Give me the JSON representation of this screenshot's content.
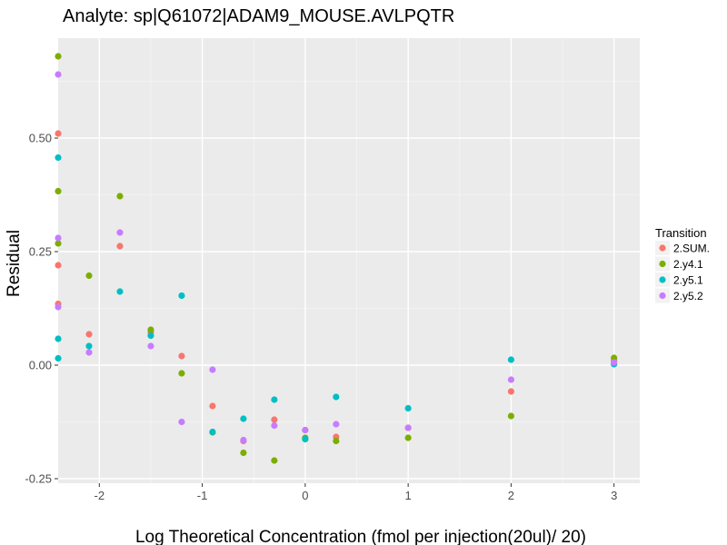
{
  "chart_data": {
    "type": "scatter",
    "title": "Analyte: sp|Q61072|ADAM9_MOUSE.AVLPQTR",
    "xlabel": "Log Theoretical Concentration (fmol per injection(20ul)/ 20)",
    "ylabel": "Residual",
    "xlim": [
      -2.4,
      3.25
    ],
    "ylim": [
      -0.26,
      0.72
    ],
    "x_ticks": [
      -2,
      -1,
      0,
      1,
      2,
      3
    ],
    "x_tick_labels": [
      "-2",
      "-1",
      "0",
      "1",
      "2",
      "3"
    ],
    "y_ticks": [
      -0.25,
      0.0,
      0.25,
      0.5
    ],
    "y_tick_labels": [
      "-0.25",
      "0.00",
      "0.25",
      "0.50"
    ],
    "grid": true,
    "legend": {
      "title": "Transition",
      "position": "right"
    },
    "series": [
      {
        "name": "2.SUM.",
        "color": "#F8766D",
        "points": [
          [
            -2.4,
            0.51
          ],
          [
            -2.4,
            0.22
          ],
          [
            -2.4,
            0.135
          ],
          [
            -2.1,
            0.068
          ],
          [
            -1.8,
            0.262
          ],
          [
            -1.5,
            0.072
          ],
          [
            -1.2,
            0.02
          ],
          [
            -0.9,
            -0.09
          ],
          [
            -0.6,
            -0.167
          ],
          [
            -0.3,
            -0.12
          ],
          [
            0.0,
            -0.143
          ],
          [
            0.3,
            -0.158
          ],
          [
            1.0,
            -0.138
          ],
          [
            2.0,
            -0.058
          ],
          [
            3.0,
            0.01
          ]
        ]
      },
      {
        "name": "2.y4.1",
        "color": "#7CAE00",
        "points": [
          [
            -2.4,
            0.68
          ],
          [
            -2.4,
            0.383
          ],
          [
            -2.4,
            0.268
          ],
          [
            -2.1,
            0.197
          ],
          [
            -1.8,
            0.372
          ],
          [
            -1.5,
            0.078
          ],
          [
            -1.2,
            -0.018
          ],
          [
            -0.9,
            -0.148
          ],
          [
            -0.6,
            -0.193
          ],
          [
            -0.3,
            -0.21
          ],
          [
            0.0,
            -0.16
          ],
          [
            0.3,
            -0.167
          ],
          [
            1.0,
            -0.16
          ],
          [
            2.0,
            -0.112
          ],
          [
            3.0,
            0.016
          ]
        ]
      },
      {
        "name": "2.y5.1",
        "color": "#00BFC4",
        "points": [
          [
            -2.4,
            0.457
          ],
          [
            -2.4,
            0.058
          ],
          [
            -2.4,
            0.015
          ],
          [
            -2.1,
            0.042
          ],
          [
            -1.8,
            0.162
          ],
          [
            -1.5,
            0.065
          ],
          [
            -1.2,
            0.153
          ],
          [
            -0.9,
            -0.147
          ],
          [
            -0.6,
            -0.118
          ],
          [
            -0.3,
            -0.076
          ],
          [
            0.0,
            -0.163
          ],
          [
            0.3,
            -0.07
          ],
          [
            1.0,
            -0.095
          ],
          [
            2.0,
            0.012
          ],
          [
            3.0,
            0.002
          ]
        ]
      },
      {
        "name": "2.y5.2",
        "color": "#C77CFF",
        "points": [
          [
            -2.4,
            0.64
          ],
          [
            -2.4,
            0.28
          ],
          [
            -2.4,
            0.128
          ],
          [
            -2.1,
            0.028
          ],
          [
            -1.8,
            0.292
          ],
          [
            -1.5,
            0.042
          ],
          [
            -1.2,
            -0.125
          ],
          [
            -0.9,
            -0.01
          ],
          [
            -0.6,
            -0.165
          ],
          [
            -0.3,
            -0.133
          ],
          [
            0.0,
            -0.143
          ],
          [
            0.3,
            -0.13
          ],
          [
            1.0,
            -0.138
          ],
          [
            2.0,
            -0.032
          ],
          [
            3.0,
            0.006
          ]
        ]
      }
    ]
  }
}
